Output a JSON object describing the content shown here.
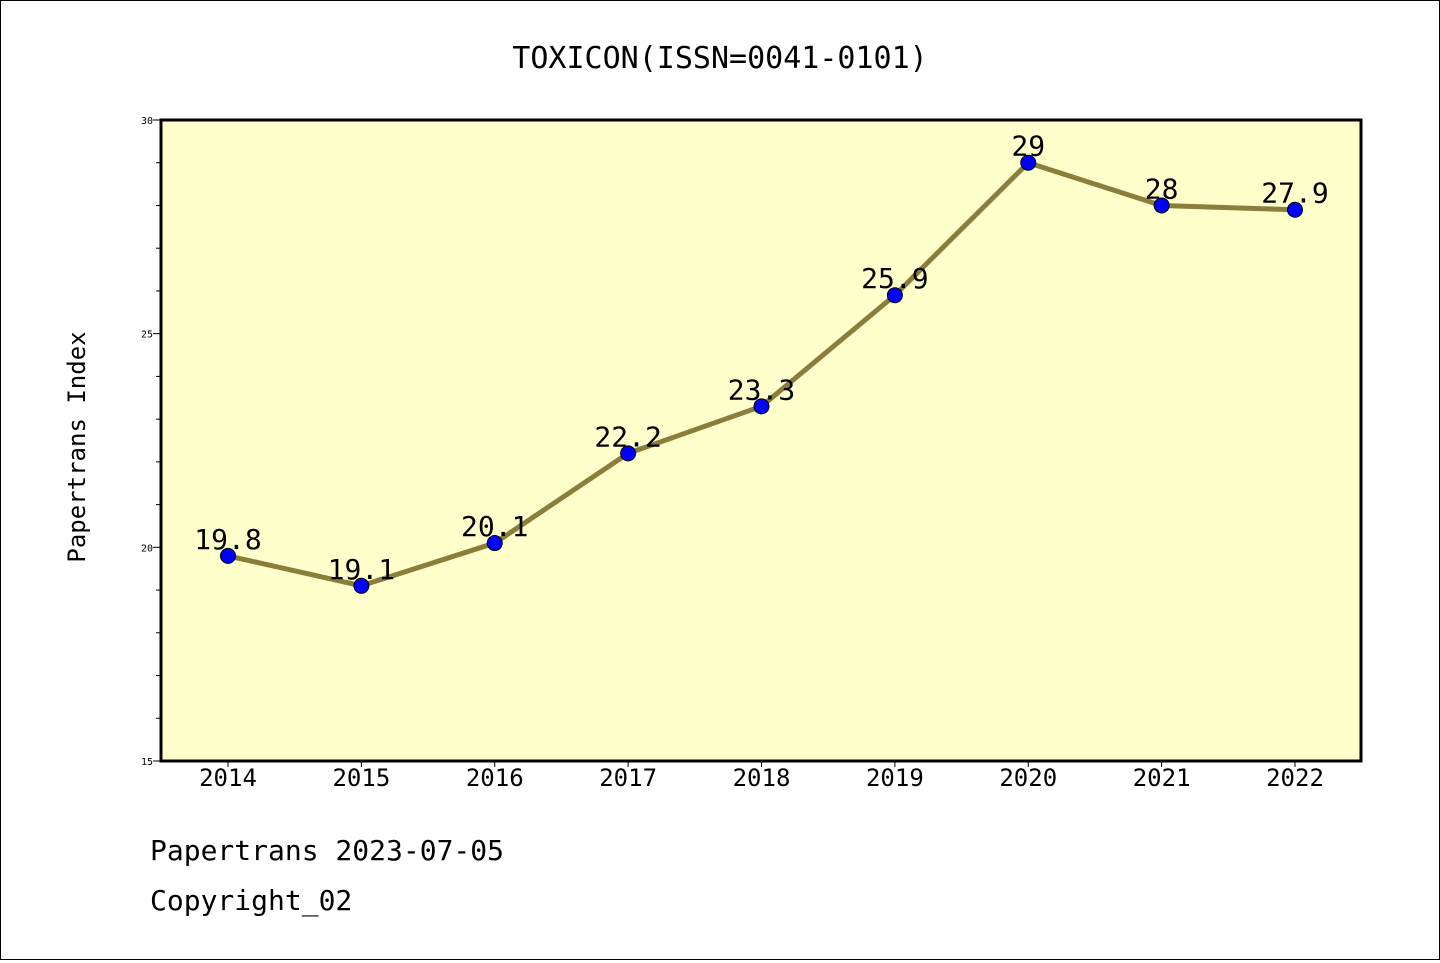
{
  "chart_data": {
    "type": "line",
    "title": "TOXICON(ISSN=0041-0101)",
    "xlabel": "",
    "ylabel": "Papertrans Index",
    "categories": [
      "2014",
      "2015",
      "2016",
      "2017",
      "2018",
      "2019",
      "2020",
      "2021",
      "2022"
    ],
    "series": [
      {
        "values": [
          19.8,
          19.1,
          20.1,
          22.2,
          23.3,
          25.9,
          29,
          28,
          27.9
        ],
        "labels": [
          "19.8",
          "19.1",
          "20.1",
          "22.2",
          "23.3",
          "25.9",
          "29",
          "28",
          "27.9"
        ]
      }
    ],
    "ylim": [
      15,
      30
    ],
    "yticks": [
      "15",
      "20",
      "25",
      "30"
    ],
    "grid": false,
    "colors": {
      "line": "#8b7d3a",
      "marker": "#0000ff",
      "plot_background": "#ffffcc"
    }
  },
  "footer": {
    "line1": "Papertrans 2023-07-05",
    "line2": "Copyright_02"
  }
}
